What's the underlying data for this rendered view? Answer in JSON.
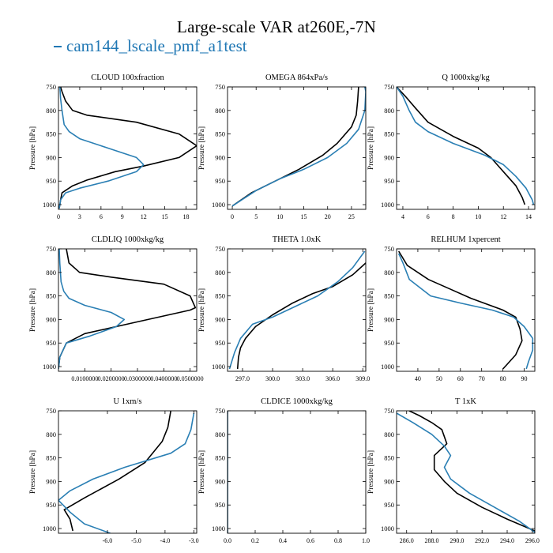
{
  "figure": {
    "title": "Large-scale VAR at260E,-7N",
    "legend": {
      "label": "cam144_lscale_pmf_a1test",
      "color": "#1f77b4"
    },
    "ylabel": "Pressure [hPa]",
    "series_colors": {
      "black": "#000000",
      "blue": "#2a7fb4"
    }
  },
  "chart_data": [
    {
      "type": "line",
      "title": "CLOUD  100xfraction",
      "xlim": [
        0,
        19.5
      ],
      "ylim": [
        1010,
        750
      ],
      "xticks": [
        0,
        3,
        6,
        9,
        12,
        15,
        18
      ],
      "xtick_labels": [
        "0",
        "3",
        "6",
        "9",
        "12",
        "15",
        "18"
      ],
      "yticks": [
        750,
        800,
        850,
        900,
        950,
        1000
      ],
      "series": [
        {
          "color": "black",
          "points": [
            [
              0.1,
              1008
            ],
            [
              0.2,
              1000
            ],
            [
              0.3,
              990
            ],
            [
              0.5,
              975
            ],
            [
              2,
              960
            ],
            [
              4,
              948
            ],
            [
              8,
              930
            ],
            [
              12,
              918
            ],
            [
              17,
              900
            ],
            [
              19.5,
              875
            ],
            [
              17,
              850
            ],
            [
              11,
              825
            ],
            [
              4,
              810
            ],
            [
              2,
              800
            ],
            [
              1,
              780
            ],
            [
              0.5,
              760
            ],
            [
              0.3,
              750
            ]
          ]
        },
        {
          "color": "blue",
          "points": [
            [
              0.1,
              1008
            ],
            [
              0.2,
              1000
            ],
            [
              0.3,
              990
            ],
            [
              1,
              975
            ],
            [
              3,
              965
            ],
            [
              7,
              950
            ],
            [
              11,
              930
            ],
            [
              12,
              915
            ],
            [
              11,
              900
            ],
            [
              7,
              880
            ],
            [
              3,
              860
            ],
            [
              1.5,
              845
            ],
            [
              0.8,
              830
            ],
            [
              0.5,
              800
            ],
            [
              0.3,
              775
            ],
            [
              0.2,
              750
            ]
          ]
        }
      ]
    },
    {
      "type": "line",
      "title": "OMEGA  864xPa/s",
      "xlim": [
        -1,
        28
      ],
      "ylim": [
        1010,
        750
      ],
      "xticks": [
        0,
        5,
        10,
        15,
        20,
        25
      ],
      "xtick_labels": [
        "0",
        "5",
        "10",
        "15",
        "20",
        "25"
      ],
      "yticks": [
        750,
        800,
        850,
        900,
        950,
        1000
      ],
      "series": [
        {
          "color": "black",
          "points": [
            [
              0,
              1003
            ],
            [
              4,
              975
            ],
            [
              8,
              955
            ],
            [
              14,
              925
            ],
            [
              19,
              895
            ],
            [
              22,
              870
            ],
            [
              25,
              835
            ],
            [
              26,
              810
            ],
            [
              26.3,
              780
            ],
            [
              26.5,
              750
            ]
          ]
        },
        {
          "color": "blue",
          "points": [
            [
              0,
              1003
            ],
            [
              5,
              970
            ],
            [
              10,
              945
            ],
            [
              15,
              925
            ],
            [
              20,
              900
            ],
            [
              24,
              870
            ],
            [
              26.5,
              840
            ],
            [
              27.8,
              800
            ],
            [
              28,
              760
            ],
            [
              27.8,
              750
            ]
          ]
        }
      ]
    },
    {
      "type": "line",
      "title": "Q  1000xkg/kg",
      "xlim": [
        3.5,
        14.5
      ],
      "ylim": [
        1010,
        750
      ],
      "xticks": [
        4,
        6,
        8,
        10,
        12,
        14
      ],
      "xtick_labels": [
        "4",
        "6",
        "8",
        "10",
        "12",
        "14"
      ],
      "yticks": [
        750,
        800,
        850,
        900,
        950,
        1000
      ],
      "series": [
        {
          "color": "black",
          "points": [
            [
              3.5,
              750
            ],
            [
              4.2,
              770
            ],
            [
              5,
              795
            ],
            [
              6,
              825
            ],
            [
              8,
              855
            ],
            [
              10,
              880
            ],
            [
              11,
              900
            ],
            [
              12,
              930
            ],
            [
              13,
              960
            ],
            [
              13.5,
              985
            ],
            [
              13.7,
              1000
            ]
          ]
        },
        {
          "color": "blue",
          "points": [
            [
              3.5,
              750
            ],
            [
              4,
              770
            ],
            [
              4.5,
              800
            ],
            [
              5,
              825
            ],
            [
              6,
              845
            ],
            [
              8,
              870
            ],
            [
              10.5,
              895
            ],
            [
              12,
              915
            ],
            [
              13,
              940
            ],
            [
              13.8,
              965
            ],
            [
              14.3,
              990
            ],
            [
              14.4,
              1000
            ]
          ]
        }
      ]
    },
    {
      "type": "line",
      "title": "CLDLIQ  1000xkg/kg",
      "xlim": [
        0,
        0.0525
      ],
      "ylim": [
        1010,
        750
      ],
      "xticks": [
        0.01,
        0.02,
        0.03,
        0.04,
        0.05
      ],
      "xtick_labels": [
        "0.0100000",
        "0.0200000",
        "0.0300000",
        "0.0400000",
        "0.0500000"
      ],
      "yticks": [
        750,
        800,
        850,
        900,
        950,
        1000
      ],
      "series": [
        {
          "color": "black",
          "points": [
            [
              0,
              1005
            ],
            [
              0.0005,
              980
            ],
            [
              0.003,
              950
            ],
            [
              0.01,
              930
            ],
            [
              0.03,
              905
            ],
            [
              0.05,
              880
            ],
            [
              0.052,
              875
            ],
            [
              0.05,
              850
            ],
            [
              0.04,
              825
            ],
            [
              0.02,
              810
            ],
            [
              0.008,
              800
            ],
            [
              0.004,
              780
            ],
            [
              0.003,
              750
            ]
          ]
        },
        {
          "color": "blue",
          "points": [
            [
              0,
              1005
            ],
            [
              0.0005,
              980
            ],
            [
              0.003,
              950
            ],
            [
              0.012,
              935
            ],
            [
              0.022,
              915
            ],
            [
              0.025,
              900
            ],
            [
              0.02,
              885
            ],
            [
              0.01,
              870
            ],
            [
              0.004,
              855
            ],
            [
              0.002,
              840
            ],
            [
              0.001,
              820
            ],
            [
              0.0005,
              780
            ],
            [
              0.0003,
              750
            ]
          ]
        }
      ]
    },
    {
      "type": "line",
      "title": "THETA  1.0xK",
      "xlim": [
        295.5,
        309.3
      ],
      "ylim": [
        1010,
        750
      ],
      "xticks": [
        297,
        300,
        303,
        306,
        309
      ],
      "xtick_labels": [
        "297.0",
        "300.0",
        "303.0",
        "306.0",
        "309.0"
      ],
      "yticks": [
        750,
        800,
        850,
        900,
        950,
        1000
      ],
      "series": [
        {
          "color": "black",
          "points": [
            [
              296.5,
              1005
            ],
            [
              296.6,
              980
            ],
            [
              296.8,
              960
            ],
            [
              297.3,
              940
            ],
            [
              298.3,
              915
            ],
            [
              300,
              890
            ],
            [
              302,
              865
            ],
            [
              304,
              845
            ],
            [
              306,
              830
            ],
            [
              308,
              805
            ],
            [
              309.3,
              780
            ]
          ]
        },
        {
          "color": "blue",
          "points": [
            [
              295.7,
              1005
            ],
            [
              296.2,
              970
            ],
            [
              296.8,
              940
            ],
            [
              298,
              910
            ],
            [
              300,
              895
            ],
            [
              302.5,
              870
            ],
            [
              304.5,
              850
            ],
            [
              306.5,
              820
            ],
            [
              308,
              790
            ],
            [
              309.2,
              755
            ]
          ]
        }
      ]
    },
    {
      "type": "line",
      "title": "RELHUM  1xpercent",
      "xlim": [
        30,
        95
      ],
      "ylim": [
        1010,
        750
      ],
      "xticks": [
        40,
        50,
        60,
        70,
        80,
        90
      ],
      "xtick_labels": [
        "40",
        "50",
        "60",
        "70",
        "80",
        "90"
      ],
      "yticks": [
        750,
        800,
        850,
        900,
        950,
        1000
      ],
      "series": [
        {
          "color": "black",
          "points": [
            [
              31,
              755
            ],
            [
              35,
              785
            ],
            [
              45,
              815
            ],
            [
              55,
              835
            ],
            [
              65,
              855
            ],
            [
              80,
              880
            ],
            [
              86,
              895
            ],
            [
              88,
              920
            ],
            [
              89,
              945
            ],
            [
              86,
              975
            ],
            [
              82,
              995
            ],
            [
              80,
              1005
            ]
          ]
        },
        {
          "color": "blue",
          "points": [
            [
              31,
              760
            ],
            [
              33,
              780
            ],
            [
              36,
              815
            ],
            [
              46,
              850
            ],
            [
              60,
              865
            ],
            [
              75,
              880
            ],
            [
              85,
              895
            ],
            [
              90,
              915
            ],
            [
              94,
              940
            ],
            [
              94,
              965
            ],
            [
              92,
              990
            ],
            [
              91,
              1005
            ]
          ]
        }
      ]
    },
    {
      "type": "line",
      "title": "U  1xm/s",
      "xlim": [
        -7.7,
        -2.9
      ],
      "ylim": [
        1010,
        750
      ],
      "xticks": [
        -6,
        -5,
        -4,
        -3
      ],
      "xtick_labels": [
        "-6.0",
        "-5.0",
        "-4.0",
        "-3.0"
      ],
      "yticks": [
        750,
        800,
        850,
        900,
        950,
        1000
      ],
      "series": [
        {
          "color": "black",
          "points": [
            [
              -7.2,
              1005
            ],
            [
              -7.3,
              980
            ],
            [
              -7.5,
              960
            ],
            [
              -6.8,
              935
            ],
            [
              -5.6,
              895
            ],
            [
              -4.7,
              860
            ],
            [
              -4.1,
              815
            ],
            [
              -3.9,
              785
            ],
            [
              -3.8,
              750
            ]
          ]
        },
        {
          "color": "blue",
          "points": [
            [
              -5.9,
              1010
            ],
            [
              -6.8,
              990
            ],
            [
              -7.3,
              965
            ],
            [
              -7.7,
              940
            ],
            [
              -7.3,
              920
            ],
            [
              -6.5,
              895
            ],
            [
              -5.4,
              870
            ],
            [
              -3.8,
              840
            ],
            [
              -3.3,
              820
            ],
            [
              -3.1,
              790
            ],
            [
              -3,
              755
            ]
          ]
        }
      ]
    },
    {
      "type": "line",
      "title": "CLDICE  1000xkg/kg",
      "xlim": [
        0,
        1.0
      ],
      "ylim": [
        1010,
        750
      ],
      "xticks": [
        0,
        0.2,
        0.4,
        0.6,
        0.8,
        1.0
      ],
      "xtick_labels": [
        "0.0",
        "0.2",
        "0.4",
        "0.6",
        "0.8",
        "1.0"
      ],
      "yticks": [
        750,
        800,
        850,
        900,
        950,
        1000
      ],
      "series": [
        {
          "color": "black",
          "points": [
            [
              0,
              1010
            ],
            [
              0,
              750
            ]
          ]
        },
        {
          "color": "blue",
          "points": [
            [
              0,
              1010
            ],
            [
              0,
              750
            ]
          ]
        }
      ]
    },
    {
      "type": "line",
      "title": "T  1xK",
      "xlim": [
        285.2,
        296.2
      ],
      "ylim": [
        1010,
        750
      ],
      "xticks": [
        286,
        288,
        290,
        292,
        294,
        296
      ],
      "xtick_labels": [
        "286.0",
        "288.0",
        "290.0",
        "292.0",
        "294.0",
        "296.0"
      ],
      "yticks": [
        750,
        800,
        850,
        900,
        950,
        1000
      ],
      "series": [
        {
          "color": "black",
          "points": [
            [
              286.2,
              750
            ],
            [
              287,
              760
            ],
            [
              288,
              775
            ],
            [
              288.8,
              790
            ],
            [
              289,
              805
            ],
            [
              289.2,
              820
            ],
            [
              288.2,
              845
            ],
            [
              288.2,
              875
            ],
            [
              289,
              900
            ],
            [
              290,
              925
            ],
            [
              292,
              955
            ],
            [
              294,
              980
            ],
            [
              296.2,
              1005
            ]
          ]
        },
        {
          "color": "blue",
          "points": [
            [
              285.2,
              755
            ],
            [
              286.5,
              775
            ],
            [
              288,
              800
            ],
            [
              289,
              825
            ],
            [
              289.5,
              845
            ],
            [
              289,
              870
            ],
            [
              289.5,
              895
            ],
            [
              291,
              925
            ],
            [
              293,
              955
            ],
            [
              295,
              985
            ],
            [
              296.2,
              1008
            ]
          ]
        }
      ]
    }
  ]
}
